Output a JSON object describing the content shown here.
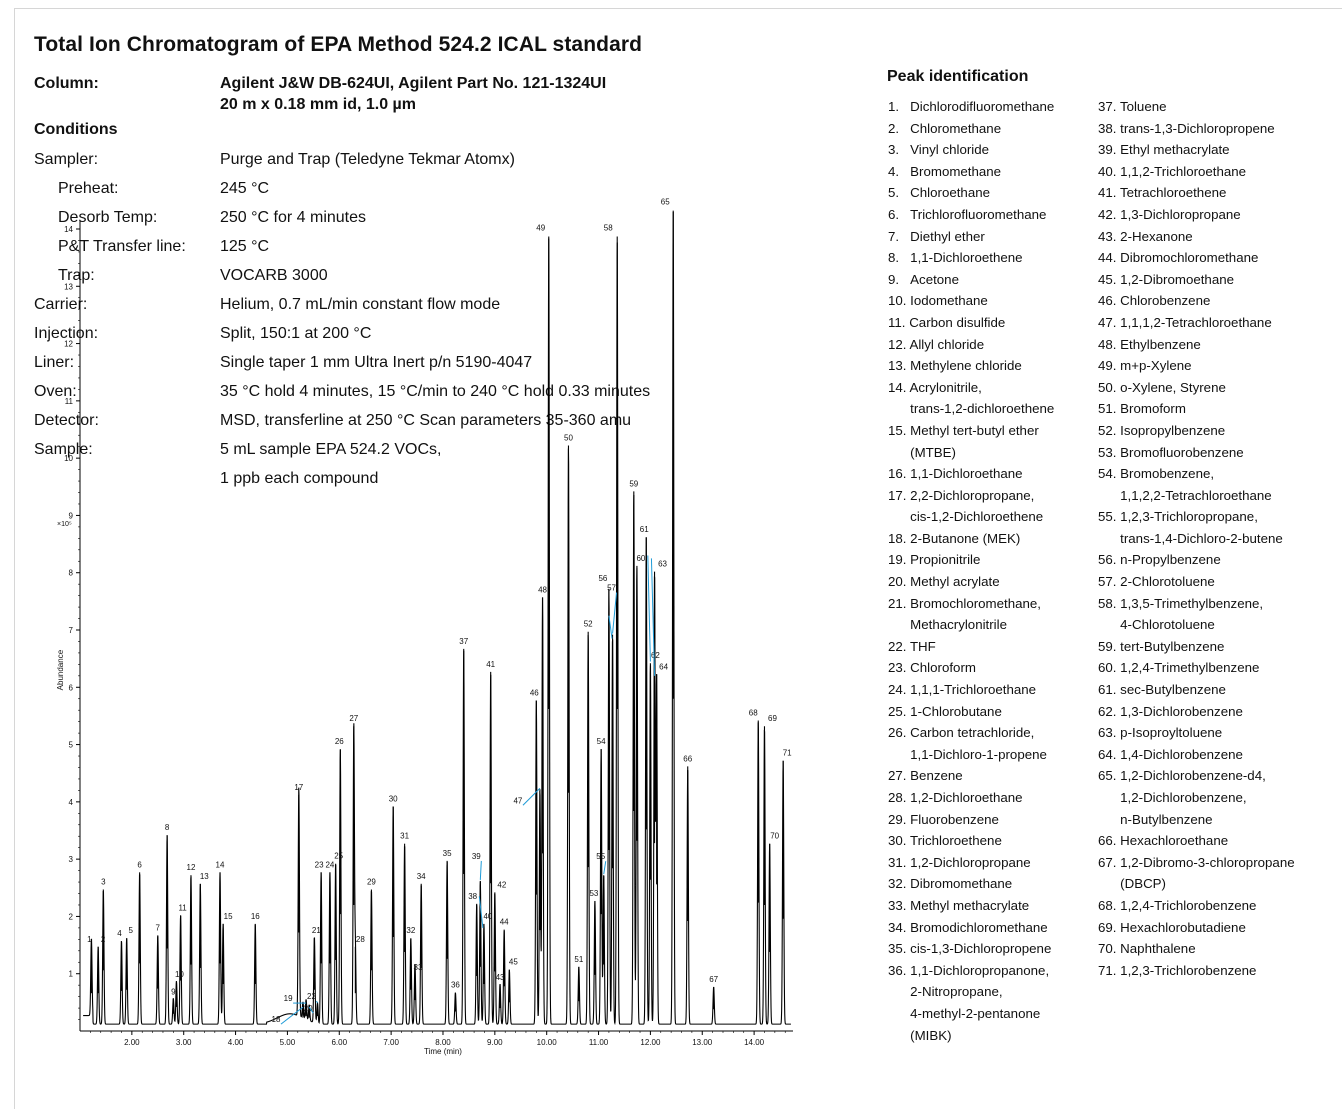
{
  "title": "Total Ion Chromatogram of EPA Method 524.2 ICAL standard",
  "column": {
    "label": "Column:",
    "line1": "Agilent J&W DB-624UI, Agilent Part No. 121-1324UI",
    "line2": "20 m x 0.18 mm id, 1.0 µm"
  },
  "conditions": {
    "heading": "Conditions",
    "rows": [
      {
        "label": "Sampler:",
        "value": "Purge and Trap (Teledyne Tekmar Atomx)",
        "indent": false
      },
      {
        "label": "Preheat:",
        "value": "245 °C",
        "indent": true
      },
      {
        "label": "Desorb Temp:",
        "value": "250 °C for 4 minutes",
        "indent": true
      },
      {
        "label": "P&T Transfer line:",
        "value": "125 °C",
        "indent": true
      },
      {
        "label": "Trap:",
        "value": "VOCARB 3000",
        "indent": true
      },
      {
        "label": "Carrier:",
        "value": "Helium, 0.7 mL/min constant flow mode",
        "indent": false
      },
      {
        "label": "Injection:",
        "value": "Split, 150:1 at 200 °C",
        "indent": false
      },
      {
        "label": "Liner:",
        "value": "Single taper 1 mm Ultra Inert p/n 5190-4047",
        "indent": false
      },
      {
        "label": "Oven:",
        "value": "35 °C hold 4 minutes, 15 °C/min to 240 °C hold 0.33 minutes",
        "indent": false
      },
      {
        "label": "Detector:",
        "value": "MSD, transferline at 250 °C Scan parameters 35-360 amu",
        "indent": false
      },
      {
        "label": "Sample:",
        "value": "5 mL sample EPA 524.2 VOCs,",
        "indent": false
      },
      {
        "label": "",
        "value": "1 ppb each compound",
        "indent": false
      }
    ]
  },
  "peak_identification": {
    "heading": "Peak identification",
    "column1": [
      "1.   Dichlorodifluoromethane",
      "2.   Chloromethane",
      "3.   Vinyl chloride",
      "4.   Bromomethane",
      "5.   Chloroethane",
      "6.   Trichlorofluoromethane",
      "7.   Diethyl ether",
      "8.   1,1-Dichloroethene",
      "9.   Acetone",
      "10. Iodomethane",
      "11. Carbon disulfide",
      "12. Allyl chloride",
      "13. Methylene chloride",
      "14. Acrylonitrile,",
      "      trans-1,2-dichloroethene",
      "15. Methyl tert-butyl ether",
      "      (MTBE)",
      "16. 1,1-Dichloroethane",
      "17. 2,2-Dichloropropane,",
      "      cis-1,2-Dichloroethene",
      "18. 2-Butanone (MEK)",
      "19. Propionitrile",
      "20. Methyl acrylate",
      "21. Bromochloromethane,",
      "      Methacrylonitrile",
      "22. THF",
      "23. Chloroform",
      "24. 1,1,1-Trichloroethane",
      "25. 1-Chlorobutane",
      "26. Carbon tetrachloride,",
      "      1,1-Dichloro-1-propene",
      "27. Benzene",
      "28. 1,2-Dichloroethane",
      "29. Fluorobenzene",
      "30. Trichloroethene",
      "31. 1,2-Dichloropropane",
      "32. Dibromomethane",
      "33. Methyl methacrylate",
      "34. Bromodichloromethane",
      "35. cis-1,3-Dichloropropene",
      "36. 1,1-Dichloropropanone,",
      "      2-Nitropropane,",
      "      4-methyl-2-pentanone",
      "      (MIBK)"
    ],
    "column2": [
      "37. Toluene",
      "38. trans-1,3-Dichloropropene",
      "39. Ethyl methacrylate",
      "40. 1,1,2-Trichloroethane",
      "41. Tetrachloroethene",
      "42. 1,3-Dichloropropane",
      "43. 2-Hexanone",
      "44. Dibromochloromethane",
      "45. 1,2-Dibromoethane",
      "46. Chlorobenzene",
      "47. 1,1,1,2-Tetrachloroethane",
      "48. Ethylbenzene",
      "49. m+p-Xylene",
      "50. o-Xylene, Styrene",
      "51. Bromoform",
      "52. Isopropylbenzene",
      "53. Bromofluorobenzene",
      "54. Bromobenzene,",
      "      1,1,2,2-Tetrachloroethane",
      "55. 1,2,3-Trichloropropane,",
      "      trans-1,4-Dichloro-2-butene",
      "56. n-Propylbenzene",
      "57. 2-Chlorotoluene",
      "58. 1,3,5-Trimethylbenzene,",
      "      4-Chlorotoluene",
      "59. tert-Butylbenzene",
      "60. 1,2,4-Trimethylbenzene",
      "61. sec-Butylbenzene",
      "62. 1,3-Dichlorobenzene",
      "63. p-Isoproyltoluene",
      "64. 1,4-Dichlorobenzene",
      "65. 1,2-Dichlorobenzene-d4,",
      "      1,2-Dichlorobenzene,",
      "      n-Butylbenzene",
      "66. Hexachloroethane",
      "67. 1,2-Dibromo-3-chloropropane",
      "      (DBCP)",
      "68. 1,2,4-Trichlorobenzene",
      "69. Hexachlorobutadiene",
      "70. Naphthalene",
      "71. 1,2,3-Trichlorobenzene"
    ]
  },
  "chart_data": {
    "type": "line",
    "xlabel": "Time (min)",
    "ylabel": "Abundance",
    "y_multiplier": "×10⁵",
    "xlim": [
      1.0,
      14.75
    ],
    "ylim": [
      0,
      14.2
    ],
    "x_ticks": [
      "2.00",
      "3.00",
      "4.00",
      "5.00",
      "6.00",
      "7.00",
      "8.00",
      "9.00",
      "10.00",
      "11.00",
      "12.00",
      "13.00",
      "14.00"
    ],
    "y_ticks": [
      "1",
      "2",
      "3",
      "4",
      "5",
      "6",
      "7",
      "8",
      "9",
      "10",
      "11",
      "12",
      "13",
      "14"
    ],
    "line_color": "#000000",
    "callout_color": "#1e9bd7",
    "baseline": 0.12,
    "peaks": [
      {
        "label": "1",
        "t": 1.22,
        "h": 1.35
      },
      {
        "label": "2",
        "t": 1.35,
        "h": 1.35
      },
      {
        "label": "3",
        "t": 1.45,
        "h": 2.35
      },
      {
        "label": "4",
        "t": 1.8,
        "h": 1.45
      },
      {
        "label": "5",
        "t": 1.9,
        "h": 1.5
      },
      {
        "label": "6",
        "t": 2.15,
        "h": 2.65
      },
      {
        "label": "7",
        "t": 2.5,
        "h": 1.55
      },
      {
        "label": "8",
        "t": 2.68,
        "h": 3.3
      },
      {
        "label": "9",
        "t": 2.8,
        "h": 0.45
      },
      {
        "label": "10",
        "t": 2.86,
        "h": 0.75
      },
      {
        "label": "11",
        "t": 2.94,
        "h": 1.9
      },
      {
        "label": "12",
        "t": 3.14,
        "h": 2.6
      },
      {
        "label": "13",
        "t": 3.32,
        "h": 2.45
      },
      {
        "label": "14",
        "t": 3.7,
        "h": 2.65
      },
      {
        "label": "15",
        "t": 3.76,
        "h": 1.75
      },
      {
        "label": "16",
        "t": 4.38,
        "h": 1.75
      },
      {
        "label": "17",
        "t": 5.22,
        "h": 4.0
      },
      {
        "label": "18",
        "t": 5.3,
        "h": 0.28
      },
      {
        "label": "19",
        "t": 5.36,
        "h": 0.35
      },
      {
        "label": "20",
        "t": 5.42,
        "h": 0.28
      },
      {
        "label": "21",
        "t": 5.52,
        "h": 1.5
      },
      {
        "label": "22",
        "t": 5.58,
        "h": 0.35
      },
      {
        "label": "23",
        "t": 5.65,
        "h": 2.65
      },
      {
        "label": "24",
        "t": 5.82,
        "h": 2.65
      },
      {
        "label": "25",
        "t": 5.93,
        "h": 2.8
      },
      {
        "label": "26",
        "t": 6.02,
        "h": 4.8
      },
      {
        "label": "27",
        "t": 6.28,
        "h": 5.2
      },
      {
        "label": "28",
        "t": 6.31,
        "h": 1.35
      },
      {
        "label": "29",
        "t": 6.62,
        "h": 2.35
      },
      {
        "label": "30",
        "t": 7.04,
        "h": 3.8
      },
      {
        "label": "31",
        "t": 7.26,
        "h": 3.15
      },
      {
        "label": "32",
        "t": 7.38,
        "h": 1.5
      },
      {
        "label": "33",
        "t": 7.46,
        "h": 1.05
      },
      {
        "label": "34",
        "t": 7.58,
        "h": 2.45
      },
      {
        "label": "35",
        "t": 8.08,
        "h": 2.85
      },
      {
        "label": "36",
        "t": 8.24,
        "h": 0.55
      },
      {
        "label": "37",
        "t": 8.4,
        "h": 6.55
      },
      {
        "label": "38",
        "t": 8.65,
        "h": 2.1
      },
      {
        "label": "39",
        "t": 8.72,
        "h": 2.5
      },
      {
        "label": "40",
        "t": 8.79,
        "h": 1.75
      },
      {
        "label": "41",
        "t": 8.92,
        "h": 6.15
      },
      {
        "label": "42",
        "t": 9.0,
        "h": 2.3
      },
      {
        "label": "43",
        "t": 9.1,
        "h": 0.7
      },
      {
        "label": "44",
        "t": 9.18,
        "h": 1.65
      },
      {
        "label": "45",
        "t": 9.28,
        "h": 0.95
      },
      {
        "label": "46",
        "t": 9.8,
        "h": 5.65
      },
      {
        "label": "47",
        "t": 9.87,
        "h": 4.1
      },
      {
        "label": "48",
        "t": 9.92,
        "h": 7.45
      },
      {
        "label": "49",
        "t": 10.04,
        "h": 13.75
      },
      {
        "label": "50",
        "t": 10.42,
        "h": 10.1
      },
      {
        "label": "51",
        "t": 10.62,
        "h": 1.0
      },
      {
        "label": "52",
        "t": 10.8,
        "h": 6.85
      },
      {
        "label": "53",
        "t": 10.93,
        "h": 2.15
      },
      {
        "label": "54",
        "t": 11.05,
        "h": 4.8
      },
      {
        "label": "55",
        "t": 11.1,
        "h": 2.6
      },
      {
        "label": "56",
        "t": 11.2,
        "h": 7.6
      },
      {
        "label": "57",
        "t": 11.27,
        "h": 6.8
      },
      {
        "label": "58",
        "t": 11.36,
        "h": 13.75
      },
      {
        "label": "59",
        "t": 11.68,
        "h": 9.3
      },
      {
        "label": "60",
        "t": 11.74,
        "h": 8.0
      },
      {
        "label": "61",
        "t": 11.92,
        "h": 8.5
      },
      {
        "label": "62",
        "t": 12.0,
        "h": 6.3
      },
      {
        "label": "63",
        "t": 12.08,
        "h": 7.9
      },
      {
        "label": "64",
        "t": 12.12,
        "h": 6.1
      },
      {
        "label": "65",
        "t": 12.44,
        "h": 14.2
      },
      {
        "label": "66",
        "t": 12.72,
        "h": 4.5
      },
      {
        "label": "67",
        "t": 13.22,
        "h": 0.65
      },
      {
        "label": "68",
        "t": 14.08,
        "h": 5.3
      },
      {
        "label": "69",
        "t": 14.2,
        "h": 5.2
      },
      {
        "label": "70",
        "t": 14.3,
        "h": 3.15
      },
      {
        "label": "71",
        "t": 14.56,
        "h": 4.6
      }
    ]
  }
}
